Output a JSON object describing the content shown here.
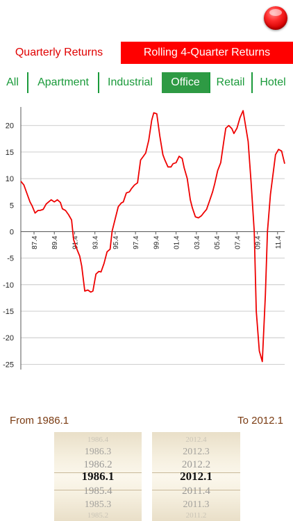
{
  "header": {
    "record_icon": "red-record-icon"
  },
  "mode_tabs": [
    {
      "label": "Quarterly Returns",
      "active": false
    },
    {
      "label": "Rolling 4-Quarter Returns",
      "active": true
    }
  ],
  "sector_tabs": [
    {
      "label": "All",
      "active": false
    },
    {
      "label": "Apartment",
      "active": false
    },
    {
      "label": "Industrial",
      "active": false
    },
    {
      "label": "Office",
      "active": true
    },
    {
      "label": "Retail",
      "active": false
    },
    {
      "label": "Hotel",
      "active": false
    }
  ],
  "chart_data": {
    "type": "line",
    "ylim": [
      -26,
      23.5
    ],
    "xlim": [
      1986.1,
      2012.1
    ],
    "yticks": [
      20,
      15,
      10,
      5,
      0,
      -5,
      -10,
      -15,
      -20,
      -25
    ],
    "xticks": [
      "87.4",
      "89.4",
      "91.4",
      "93.4",
      "95.4",
      "97.4",
      "99.4",
      "01.4",
      "03.4",
      "05.4",
      "07.4",
      "09.4",
      "11.4"
    ],
    "xtick_values": [
      1987.4,
      1989.4,
      1991.4,
      1993.4,
      1995.4,
      1997.4,
      1999.4,
      2001.4,
      2003.4,
      2005.4,
      2007.4,
      2009.4,
      2011.4
    ],
    "grid": true,
    "series": [
      {
        "color": "#ee0000",
        "x": [
          1986.1,
          1986.4,
          1986.7,
          1987.0,
          1987.2,
          1987.5,
          1987.8,
          1988.0,
          1988.3,
          1988.6,
          1988.9,
          1989.1,
          1989.4,
          1989.7,
          1990.0,
          1990.2,
          1990.5,
          1990.8,
          1991.1,
          1991.3,
          1991.6,
          1991.9,
          1992.1,
          1992.4,
          1992.7,
          1993.0,
          1993.2,
          1993.5,
          1993.8,
          1994.0,
          1994.3,
          1994.6,
          1994.9,
          1995.1,
          1995.4,
          1995.7,
          1996.0,
          1996.2,
          1996.5,
          1996.8,
          1997.0,
          1997.3,
          1997.6,
          1997.9,
          1998.1,
          1998.4,
          1998.7,
          1999.0,
          1999.2,
          1999.5,
          1999.8,
          2000.1,
          2000.3,
          2000.6,
          2000.9,
          2001.1,
          2001.4,
          2001.7,
          2002.0,
          2002.2,
          2002.5,
          2002.8,
          2003.0,
          2003.3,
          2003.6,
          2003.9,
          2004.1,
          2004.4,
          2004.7,
          2005.0,
          2005.2,
          2005.5,
          2005.8,
          2006.1,
          2006.3,
          2006.6,
          2006.9,
          2007.1,
          2007.4,
          2007.7,
          2008.0,
          2008.2,
          2008.5,
          2008.8,
          2009.1,
          2009.3,
          2009.6,
          2009.9,
          2010.2,
          2010.4,
          2010.7,
          2011.0,
          2011.2,
          2011.5,
          2011.8,
          2012.1
        ],
        "values": [
          9.5,
          8.8,
          7.2,
          5.6,
          4.9,
          3.5,
          4.0,
          4.0,
          4.2,
          5.2,
          5.7,
          6.0,
          5.6,
          6.0,
          5.5,
          4.3,
          4.0,
          3.2,
          2.2,
          -1.5,
          -3.2,
          -4.6,
          -6.5,
          -11.2,
          -11.0,
          -11.4,
          -11.2,
          -8.0,
          -7.5,
          -7.6,
          -6.0,
          -3.8,
          -3.3,
          0.1,
          2.4,
          4.7,
          5.4,
          5.6,
          7.3,
          7.5,
          8.1,
          8.8,
          9.2,
          13.5,
          14.0,
          14.8,
          17.2,
          21.0,
          22.4,
          22.2,
          18.0,
          14.5,
          13.5,
          12.2,
          12.2,
          12.8,
          13.0,
          14.2,
          13.8,
          12.0,
          10.0,
          6.0,
          4.5,
          2.8,
          2.6,
          3.0,
          3.5,
          4.2,
          5.8,
          7.5,
          9.0,
          11.5,
          13.0,
          17.0,
          19.5,
          20.0,
          19.4,
          18.5,
          19.5,
          21.5,
          22.8,
          20.5,
          17.0,
          9.0,
          0.0,
          -15.0,
          -22.5,
          -24.5,
          -12.0,
          0.0,
          7.0,
          11.5,
          14.5,
          15.5,
          15.2,
          12.8
        ]
      }
    ]
  },
  "range": {
    "from_label": "From 1986.1",
    "to_label": "To 2012.1"
  },
  "from_picker": [
    "1986.4",
    "1986.3",
    "1986.2",
    "1986.1",
    "1985.4",
    "1985.3",
    "1985.2"
  ],
  "to_picker": [
    "2012.4",
    "2012.3",
    "2012.2",
    "2012.1",
    "2011.4",
    "2011.3",
    "2011.2"
  ],
  "picker_selected_index": 3
}
